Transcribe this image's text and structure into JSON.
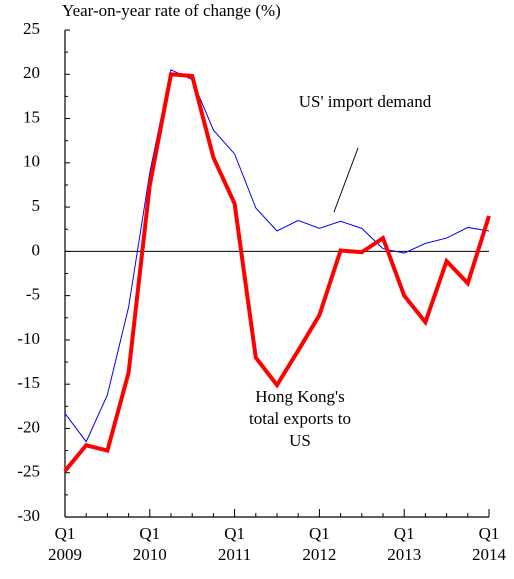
{
  "chart_data": {
    "type": "line",
    "title": "Year-on-year rate of change (%)",
    "categories": [
      "Q1 2009",
      null,
      null,
      null,
      "Q1 2010",
      null,
      null,
      null,
      "Q1 2011",
      null,
      null,
      null,
      "Q1 2012",
      null,
      null,
      null,
      "Q1 2013",
      null,
      null,
      null,
      "Q1 2014"
    ],
    "series": [
      {
        "name": "US' import demand",
        "color": "#0000ff",
        "width": 1,
        "values": [
          -18.3,
          -21.5,
          -16.2,
          -6.3,
          8.9,
          20.5,
          19.4,
          13.7,
          11,
          4.9,
          2.3,
          3.5,
          2.6,
          3.4,
          2.6,
          0.3,
          -0.2,
          0.9,
          1.5,
          2.7,
          2.3
        ]
      },
      {
        "name": "Hong Kong's total exports to US",
        "color": "#ff0000",
        "width": 4,
        "values": [
          -24.8,
          -21.9,
          -22.5,
          -13.7,
          7.5,
          20,
          19.8,
          10.6,
          5.4,
          -12,
          -15.1,
          -11.2,
          -7.2,
          0.1,
          -0.1,
          1.5,
          -5,
          -8,
          -1.1,
          -3.6,
          4
        ]
      }
    ],
    "ylim": [
      -30,
      25
    ],
    "yticks": [
      -30,
      -25,
      -20,
      -15,
      -10,
      -5,
      0,
      5,
      10,
      15,
      20,
      25
    ]
  }
}
